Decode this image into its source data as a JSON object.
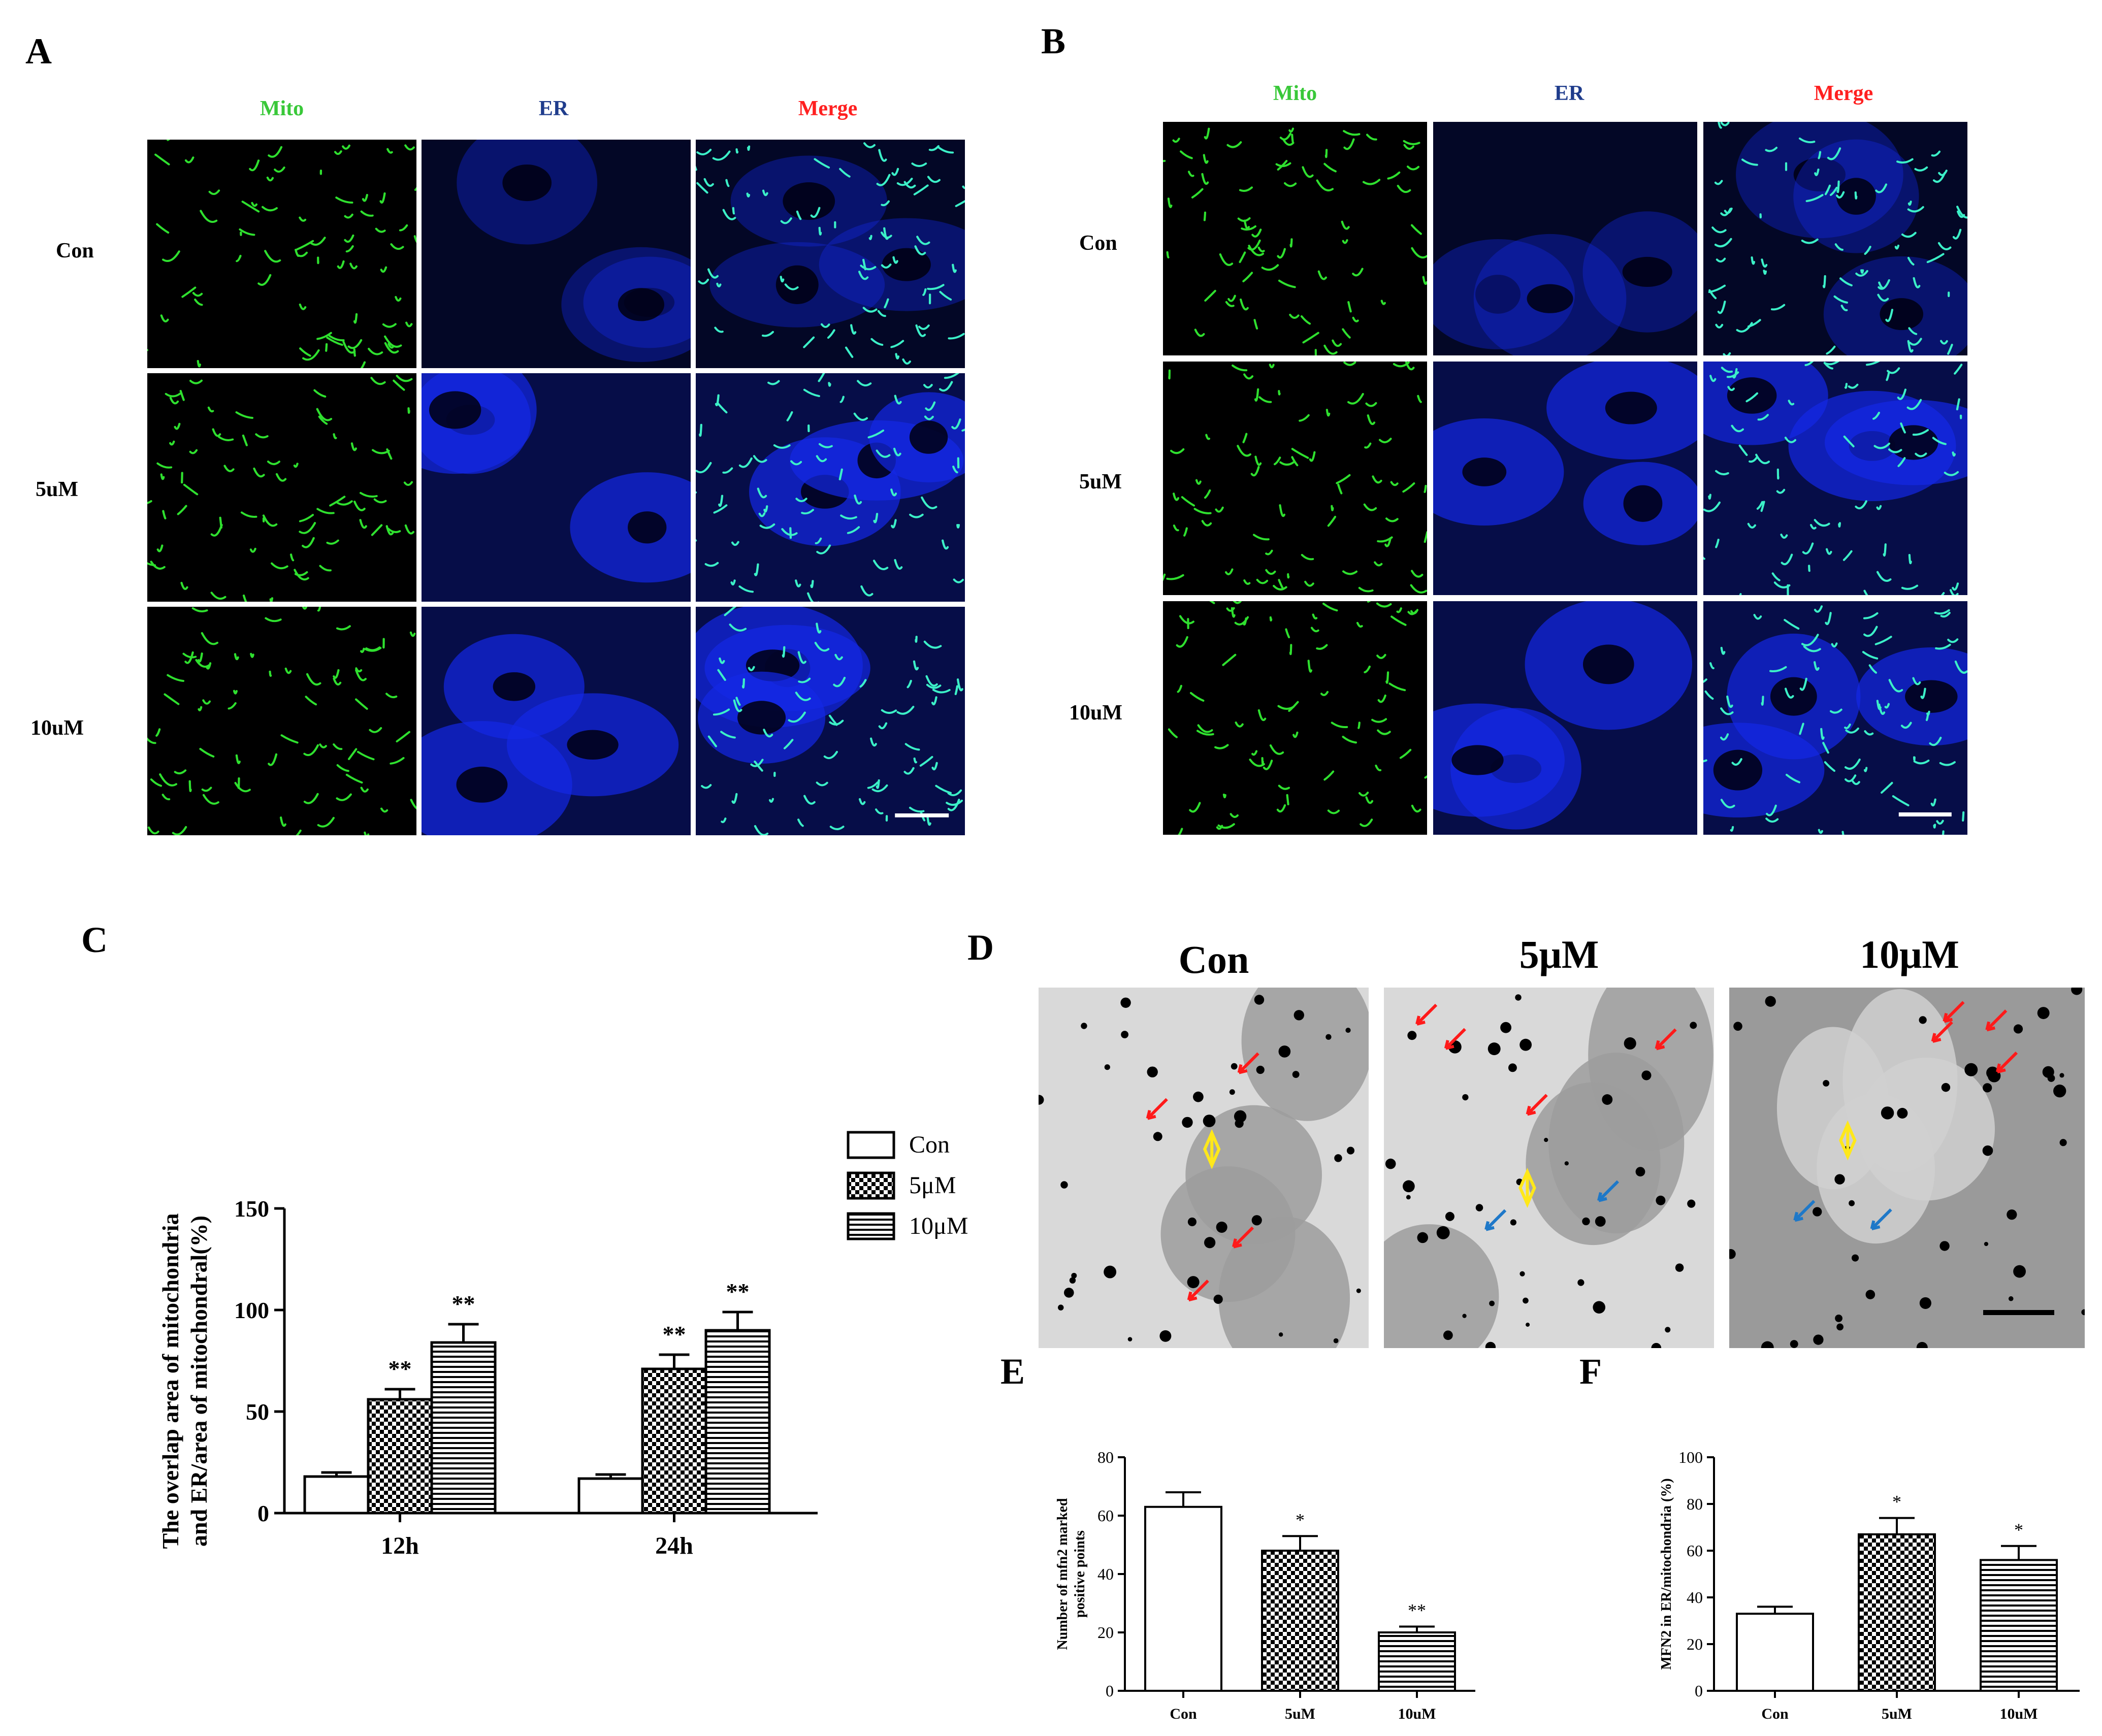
{
  "panels": {
    "A": {
      "label": "A",
      "channels": [
        "Mito",
        "ER",
        "Merge"
      ],
      "rows": [
        "Con",
        "5uM",
        "10uM"
      ]
    },
    "B": {
      "label": "B",
      "channels": [
        "Mito",
        "ER",
        "Merge"
      ],
      "rows": [
        "Con",
        "5uM",
        "10uM"
      ]
    },
    "C": {
      "label": "C"
    },
    "D": {
      "label": "D",
      "titles": [
        "Con",
        "5μM",
        "10μM"
      ]
    },
    "E": {
      "label": "E"
    },
    "F": {
      "label": "F"
    }
  },
  "colors": {
    "mito_label": "#39c839",
    "er_label": "#1f3c8c",
    "merge_label": "#ff2020",
    "mito": "#2fe02f",
    "er": "#1428e6",
    "arrow_red": "#ff1a1a",
    "arrow_blue": "#1e78c8",
    "arrow_yellow": "#ffe81a"
  },
  "chart_data": [
    {
      "id": "C",
      "type": "bar",
      "categories": [
        "12h",
        "24h"
      ],
      "series": [
        {
          "name": "Con",
          "values": [
            18,
            17
          ],
          "errors": [
            2,
            2
          ],
          "sig": [
            "",
            ""
          ],
          "pattern": "none"
        },
        {
          "name": "5μM",
          "values": [
            56,
            71
          ],
          "errors": [
            5,
            7
          ],
          "sig": [
            "**",
            "**"
          ],
          "pattern": "check"
        },
        {
          "name": "10μM",
          "values": [
            84,
            90
          ],
          "errors": [
            9,
            9
          ],
          "sig": [
            "**",
            "**"
          ],
          "pattern": "hlines"
        }
      ],
      "ylabel": "The overlap area of mitochondria and ER/area of mitochondral(%)",
      "ylim": [
        0,
        150
      ],
      "yticks": [
        0,
        50,
        100,
        150
      ],
      "legend": "right"
    },
    {
      "id": "E",
      "type": "bar",
      "categories": [
        "Con",
        "5uM",
        "10uM"
      ],
      "values": [
        63,
        48,
        20
      ],
      "errors": [
        5,
        5,
        2
      ],
      "sig": [
        "",
        "*",
        "**"
      ],
      "patterns": [
        "none",
        "check",
        "hlines"
      ],
      "ylabel": "Number of mfn2 marked positive points",
      "ylim": [
        0,
        80
      ],
      "yticks": [
        0,
        20,
        40,
        60,
        80
      ]
    },
    {
      "id": "F",
      "type": "bar",
      "categories": [
        "Con",
        "5uM",
        "10uM"
      ],
      "values": [
        33,
        67,
        56
      ],
      "errors": [
        3,
        7,
        6
      ],
      "sig": [
        "",
        "*",
        "*"
      ],
      "patterns": [
        "none",
        "check",
        "hlines"
      ],
      "ylabel": "MFN2 in ER/mitochondria (%)",
      "ylim": [
        0,
        100
      ],
      "yticks": [
        0,
        20,
        40,
        60,
        80,
        100
      ]
    }
  ]
}
